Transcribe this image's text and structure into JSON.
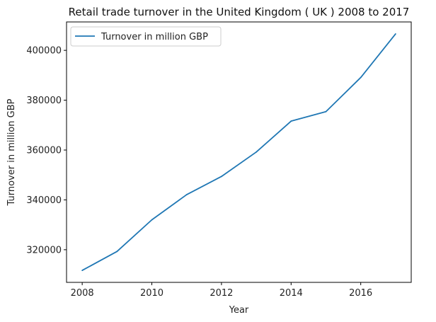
{
  "chart_data": {
    "type": "line",
    "title": "Retail trade turnover in the United Kingdom ( UK ) 2008 to 2017",
    "xlabel": "Year",
    "ylabel": "Turnover in million GBP",
    "x": [
      2008,
      2009,
      2010,
      2011,
      2012,
      2013,
      2014,
      2015,
      2016,
      2017
    ],
    "series": [
      {
        "name": "Turnover in million GBP",
        "color": "#1f77b4",
        "values": [
          311700,
          319300,
          332000,
          342100,
          349400,
          359200,
          371600,
          375400,
          389100,
          406600
        ]
      }
    ],
    "xlim": [
      2007.55,
      2017.45
    ],
    "ylim": [
      306900,
      411400
    ],
    "x_ticks": [
      2008,
      2010,
      2012,
      2014,
      2016
    ],
    "y_ticks": [
      320000,
      340000,
      360000,
      380000,
      400000
    ],
    "x_tick_labels": [
      "2008",
      "2010",
      "2012",
      "2014",
      "2016"
    ],
    "y_tick_labels": [
      "320000",
      "340000",
      "360000",
      "380000",
      "400000"
    ],
    "grid": false,
    "legend_position": "top-left"
  }
}
